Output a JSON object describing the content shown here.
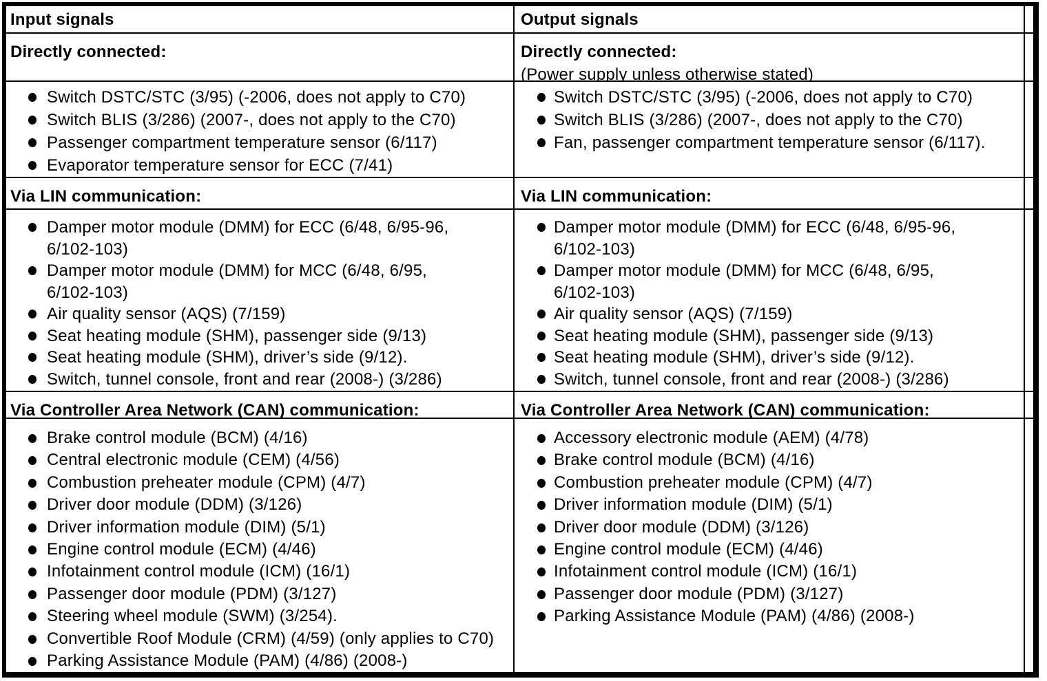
{
  "cols": [
    {
      "header": "Input signals",
      "sections": [
        {
          "title": "Directly connected:",
          "subtitle": "",
          "items": [
            "Switch DSTC/STC (3/95) (-2006, does not apply to C70)",
            "Switch BLIS (3/286) (2007-, does not apply to the C70)",
            "Passenger compartment temperature sensor (6/117)",
            "Evaporator temperature sensor for ECC (7/41)"
          ]
        },
        {
          "title": "Via LIN communication:",
          "items": [
            "Damper motor module (DMM) for ECC (6/48, 6/95-96,\n6/102-103)",
            "Damper motor module (DMM) for MCC (6/48, 6/95,\n6/102-103)",
            "Air quality sensor (AQS) (7/159)",
            "Seat heating module (SHM), passenger side (9/13)",
            "Seat heating module (SHM), driver’s side (9/12).",
            "Switch, tunnel console, front and rear (2008-) (3/286)"
          ]
        },
        {
          "title": "Via Controller Area Network (CAN) communication:",
          "items": [
            "Brake control module (BCM) (4/16)",
            "Central electronic module (CEM) (4/56)",
            "Combustion preheater module (CPM) (4/7)",
            "Driver door module (DDM) (3/126)",
            "Driver information module (DIM) (5/1)",
            "Engine control module (ECM) (4/46)",
            "Infotainment control module (ICM) (16/1)",
            "Passenger door module (PDM) (3/127)",
            "Steering wheel module (SWM) (3/254).",
            "Convertible Roof Module (CRM) (4/59) (only applies to C70)",
            "Parking Assistance Module (PAM) (4/86) (2008-)"
          ]
        }
      ]
    },
    {
      "header": "Output signals",
      "sections": [
        {
          "title": "Directly connected:",
          "subtitle": "(Power supply unless otherwise stated)",
          "items": [
            "Switch DSTC/STC (3/95) (-2006, does not apply to C70)",
            "Switch BLIS (3/286) (2007-, does not apply to the C70)",
            "Fan, passenger compartment temperature sensor (6/117)."
          ]
        },
        {
          "title": "Via LIN communication:",
          "items": [
            "Damper motor module (DMM) for ECC (6/48, 6/95-96,\n6/102-103)",
            "Damper motor module (DMM) for MCC (6/48, 6/95,\n6/102-103)",
            "Air quality sensor (AQS) (7/159)",
            "Seat heating module (SHM), passenger side (9/13)",
            "Seat heating module (SHM), driver’s side (9/12).",
            "Switch, tunnel console, front and rear (2008-) (3/286)"
          ]
        },
        {
          "title": "Via Controller Area Network (CAN) communication:",
          "items": [
            "Accessory electronic module (AEM) (4/78)",
            "Brake control module (BCM) (4/16)",
            "Combustion preheater module (CPM) (4/7)",
            "Driver information module (DIM) (5/1)",
            "Driver door module (DDM) (3/126)",
            "Engine control module (ECM) (4/46)",
            "Infotainment control module (ICM) (16/1)",
            "Passenger door module (PDM) (3/127)",
            "Parking Assistance Module (PAM) (4/86) (2008-)"
          ]
        }
      ]
    }
  ]
}
